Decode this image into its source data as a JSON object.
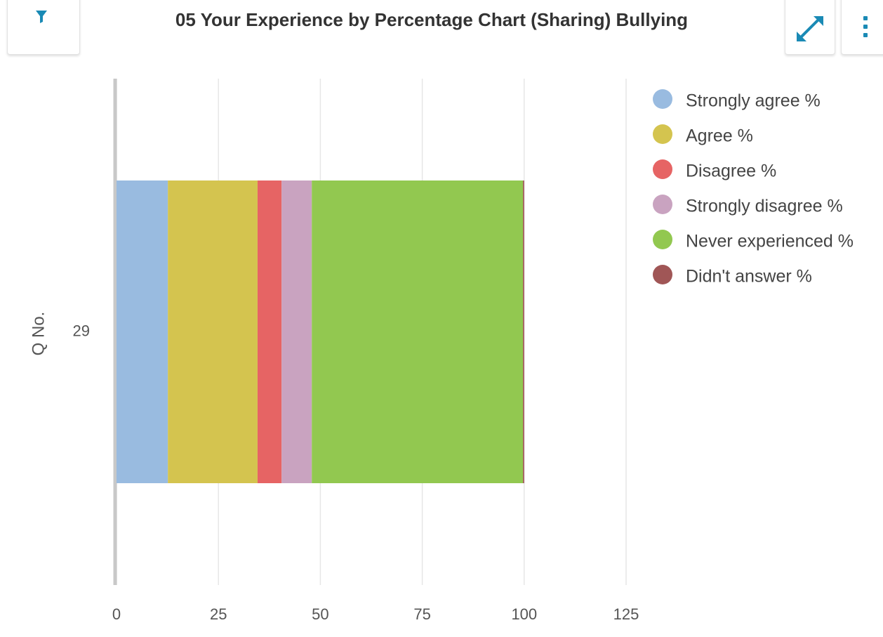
{
  "chart_data": {
    "type": "bar",
    "orientation": "horizontal",
    "stacked": true,
    "title": "05 Your Experience by Percentage Chart (Sharing) Bullying",
    "y_label": "Q No.",
    "categories": [
      "29"
    ],
    "series": [
      {
        "name": "Strongly agree %",
        "color": "#99bbe0",
        "values": [
          12.6
        ]
      },
      {
        "name": "Agree %",
        "color": "#d4c44f",
        "values": [
          22.0
        ]
      },
      {
        "name": "Disagree %",
        "color": "#e66464",
        "values": [
          5.9
        ]
      },
      {
        "name": "Strongly disagree %",
        "color": "#c9a3c0",
        "values": [
          7.4
        ]
      },
      {
        "name": "Never experienced %",
        "color": "#92c850",
        "values": [
          51.8
        ]
      },
      {
        "name": "Didn't answer %",
        "color": "#a05656",
        "values": [
          0.3
        ]
      }
    ],
    "xlim": [
      0,
      125
    ],
    "xticks": [
      0,
      25,
      50,
      75,
      100,
      125
    ],
    "grid": true,
    "legend": "right"
  }
}
